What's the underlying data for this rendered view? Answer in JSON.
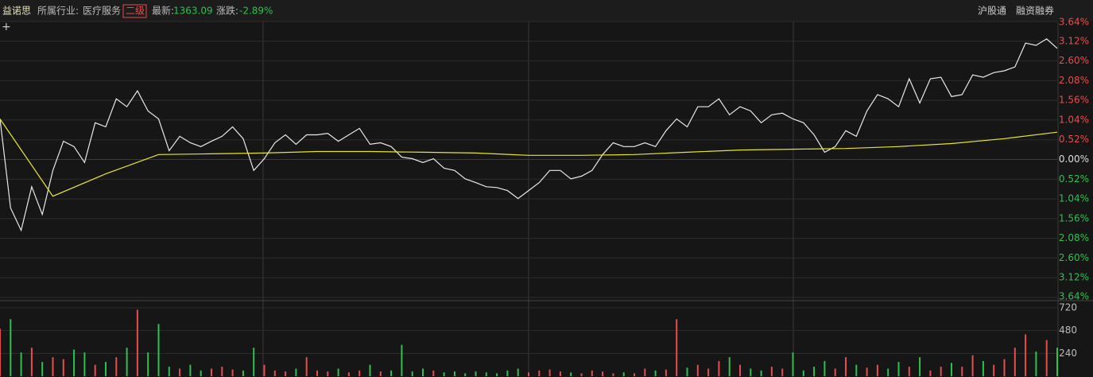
{
  "header": {
    "name": "益诺思",
    "industry_label": "所属行业:",
    "industry": "医疗服务",
    "level": "二级",
    "latest_label": "最新:",
    "latest": "1363.09",
    "change_label": "涨跌:",
    "change": "-2.89%",
    "tag1": "沪股通",
    "tag2": "融资融券"
  },
  "chart_data": {
    "type": "line",
    "grid": true,
    "up_color": "#e84d4d",
    "down_color": "#2fc14f",
    "zero_color": "#dddddd",
    "series": [
      {
        "color": "#e8e8e8",
        "values": [
          1.07,
          -1.28,
          -1.87,
          -0.72,
          -1.45,
          -0.29,
          0.48,
          0.34,
          -0.08,
          0.97,
          0.86,
          1.6,
          1.39,
          1.81,
          1.28,
          1.07,
          0.23,
          0.61,
          0.44,
          0.34,
          0.48,
          0.61,
          0.86,
          0.55,
          -0.29,
          0.02,
          0.44,
          0.65,
          0.4,
          0.65,
          0.65,
          0.69,
          0.48,
          0.65,
          0.82,
          0.4,
          0.44,
          0.34,
          0.06,
          0.02,
          -0.08,
          0.02,
          -0.23,
          -0.29,
          -0.51,
          -0.61,
          -0.72,
          -0.74,
          -0.82,
          -1.03,
          -0.82,
          -0.61,
          -0.29,
          -0.29,
          -0.51,
          -0.44,
          -0.29,
          0.13,
          0.44,
          0.34,
          0.34,
          0.44,
          0.34,
          0.76,
          1.07,
          0.86,
          1.39,
          1.39,
          1.6,
          1.18,
          1.39,
          1.28,
          0.97,
          1.18,
          1.22,
          1.07,
          0.97,
          0.65,
          0.19,
          0.34,
          0.76,
          0.61,
          1.28,
          1.71,
          1.6,
          1.39,
          2.13,
          1.49,
          2.13,
          2.17,
          1.66,
          1.71,
          2.23,
          2.17,
          2.29,
          2.34,
          2.44,
          3.07,
          3.01,
          3.18,
          2.93
        ]
      },
      {
        "color": "#e6e62f",
        "values": [
          1.07,
          -0.97,
          -0.38,
          0.13,
          0.15,
          0.17,
          0.21,
          0.21,
          0.19,
          0.17,
          0.11,
          0.11,
          0.13,
          0.19,
          0.25,
          0.27,
          0.29,
          0.34,
          0.42,
          0.55,
          0.72
        ]
      }
    ],
    "ylim": [
      -3.64,
      3.64
    ],
    "yticks": [
      {
        "value": 3.64,
        "label": "3.64%"
      },
      {
        "value": 3.12,
        "label": "3.12%"
      },
      {
        "value": 2.6,
        "label": "2.60%"
      },
      {
        "value": 2.08,
        "label": "2.08%"
      },
      {
        "value": 1.56,
        "label": "1.56%"
      },
      {
        "value": 1.04,
        "label": "1.04%"
      },
      {
        "value": 0.52,
        "label": "0.52%"
      },
      {
        "value": 0,
        "label": "0.00%"
      },
      {
        "value": -0.52,
        "label": "0.52%"
      },
      {
        "value": -1.04,
        "label": "1.04%"
      },
      {
        "value": -1.56,
        "label": "1.56%"
      },
      {
        "value": -2.08,
        "label": "2.08%"
      },
      {
        "value": -2.6,
        "label": "2.60%"
      },
      {
        "value": -3.12,
        "label": "3.12%"
      },
      {
        "value": -3.64,
        "label": "3.64%"
      }
    ],
    "volume": {
      "ylim": [
        0,
        720
      ],
      "yticks": [
        720,
        480,
        240
      ],
      "values": [
        500,
        600,
        250,
        300,
        150,
        200,
        180,
        280,
        250,
        120,
        150,
        200,
        300,
        700,
        250,
        550,
        100,
        80,
        120,
        60,
        80,
        100,
        70,
        60,
        300,
        120,
        60,
        50,
        80,
        200,
        60,
        50,
        80,
        40,
        60,
        120,
        50,
        60,
        330,
        50,
        80,
        60,
        40,
        50,
        30,
        50,
        40,
        30,
        60,
        80,
        40,
        60,
        70,
        50,
        40,
        30,
        60,
        50,
        30,
        40,
        30,
        80,
        60,
        70,
        600,
        90,
        120,
        80,
        160,
        200,
        120,
        80,
        60,
        100,
        80,
        250,
        60,
        100,
        160,
        80,
        200,
        120,
        90,
        120,
        80,
        150,
        100,
        200,
        60,
        100,
        140,
        100,
        220,
        160,
        120,
        180,
        300,
        440,
        260,
        380,
        300
      ]
    }
  }
}
